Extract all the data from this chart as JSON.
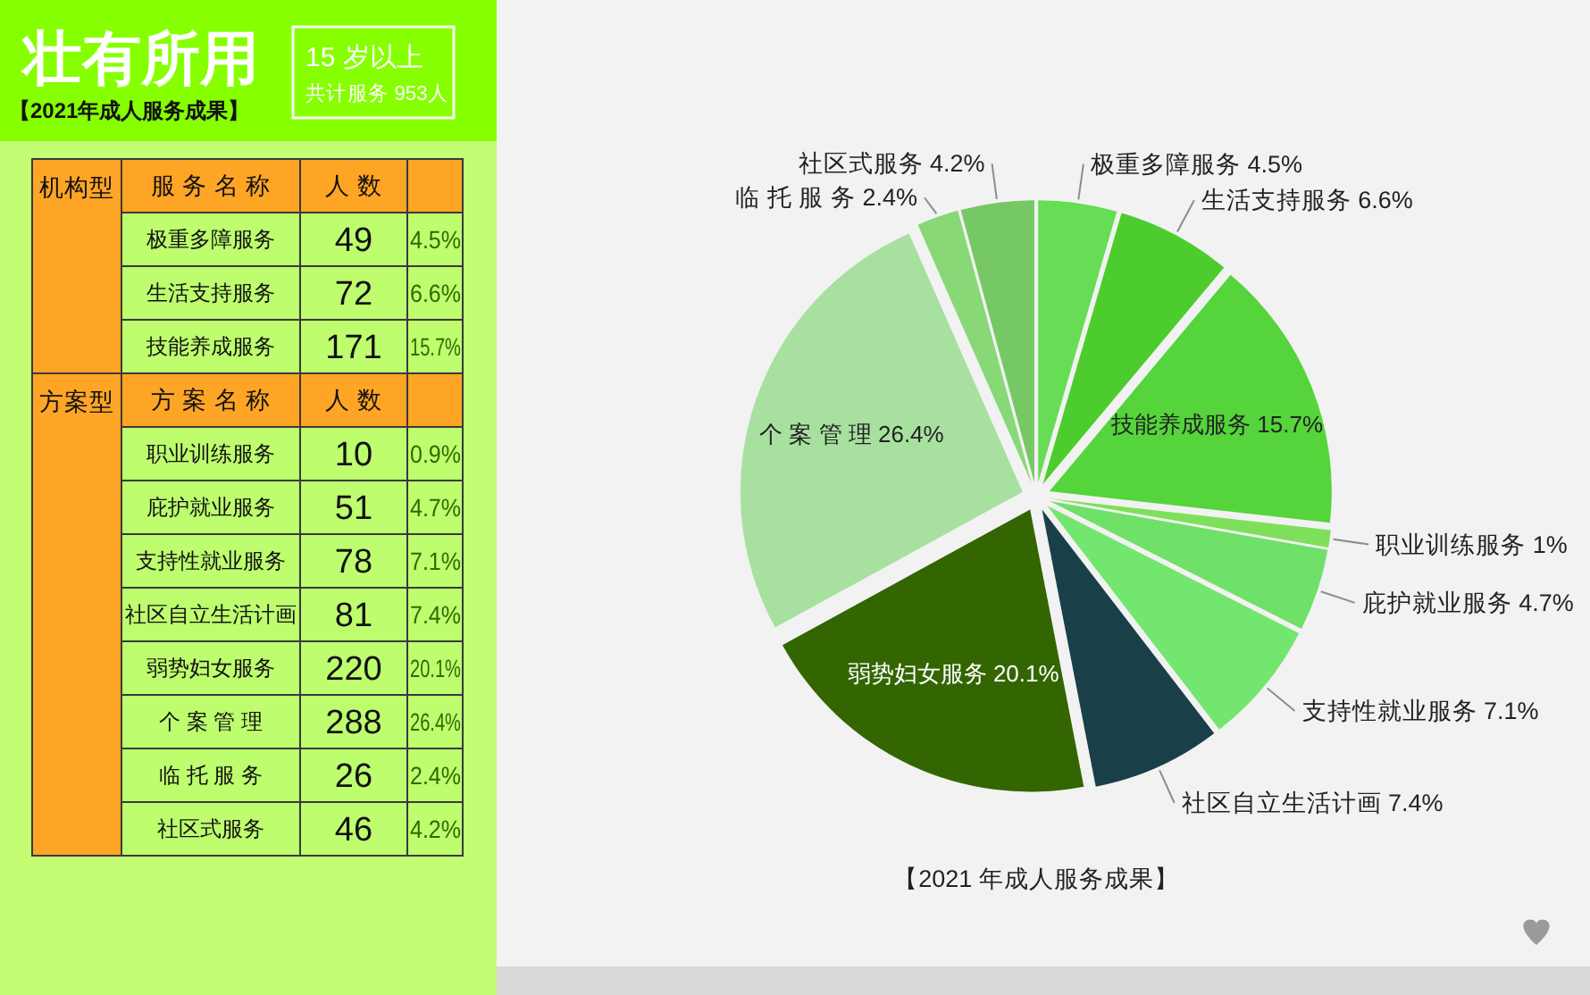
{
  "chart_data": [
    {
      "type": "other",
      "title": "壮有所用",
      "subtitle": "15 岁以上",
      "annotations": [
        "共计服务 953人",
        "【2021年成人服务成果】",
        "机构型",
        "服 务 名 称",
        "人 数",
        "方案型",
        "方 案 名 称",
        "人 数"
      ],
      "categories": [
        "极重多障服务",
        "生活支持服务",
        "技能养成服务",
        "职业训练服务",
        "庇护就业服务",
        "支持性就业服务",
        "社区自立生活计画",
        "弱势妇女服务",
        "个 案 管 理",
        "临 托 服 务",
        "社区式服务"
      ],
      "data_labels": true,
      "series": [
        {
          "values": [
            49,
            72,
            171,
            null,
            null,
            null,
            null,
            null,
            null,
            null,
            null
          ]
        },
        {
          "values": [
            null,
            null,
            null,
            10,
            51,
            78,
            81,
            220,
            288,
            26,
            46
          ]
        },
        {
          "values": [
            4.5,
            6.6,
            15.7,
            0.9,
            4.7,
            7.1,
            7.4,
            20.1,
            26.4,
            2.4,
            4.2
          ],
          "value_labels": [
            "4.5%",
            "6.6%",
            "15.7%",
            "0.9%",
            "4.7%",
            "7.1%",
            "7.4%",
            "20.1%",
            "26.4%",
            "2.4%",
            "4.2%"
          ]
        }
      ]
    },
    {
      "type": "pie",
      "categories": [
        "极重多障服务",
        "生活支持服务",
        "技能养成服务",
        "职业训练服务",
        "庇护就业服务",
        "支持性就业服务",
        "社区自立生活计画",
        "弱势妇女服务",
        "个 案 管 理",
        "临 托 服 务",
        "社区式服务"
      ],
      "values": [
        4.5,
        6.6,
        15.7,
        1,
        4.7,
        7.1,
        7.4,
        20.1,
        26.4,
        2.4,
        4.2
      ],
      "value_labels": [
        "4.5%",
        "6.6%",
        "15.7%",
        "1%",
        "4.7%",
        "7.1%",
        "7.4%",
        "20.1%",
        "26.4%",
        "2.4%",
        "4.2%"
      ],
      "colors": [
        "#66dd55",
        "#4dcc2e",
        "#55d43c",
        "#7ee05a",
        "#6fe068",
        "#72e66e",
        "#194048",
        "#336600",
        "#a8e0a0",
        "#88d878",
        "#76c865"
      ],
      "annotations": [
        "【2021 年成人服务成果】"
      ]
    }
  ]
}
